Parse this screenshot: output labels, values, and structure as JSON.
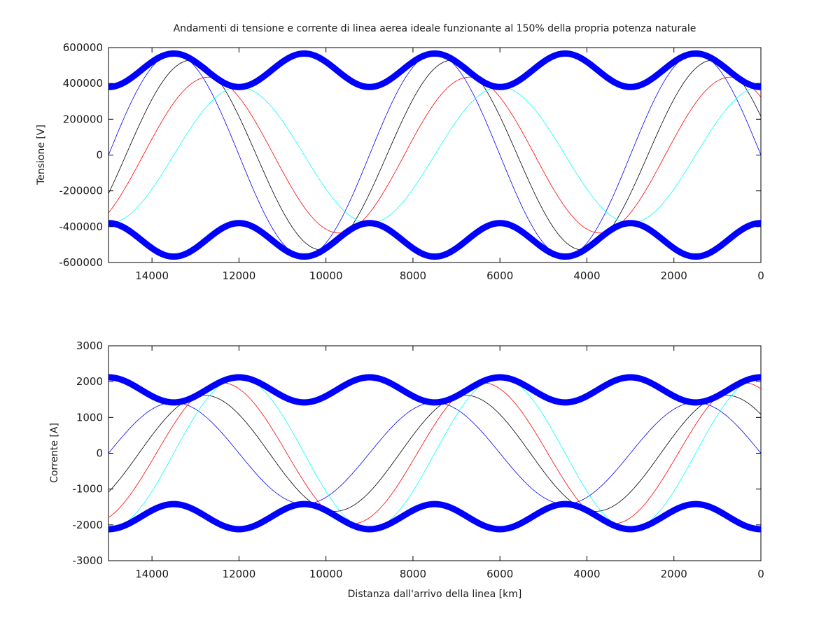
{
  "title": "Andamenti di tensione e corrente di linea aerea ideale funzionante al 150% della propria potenza naturale",
  "colors": {
    "envelope": "#0000ff",
    "series": [
      "#0000ff",
      "#000000",
      "#ff0000",
      "#00ffff"
    ]
  },
  "chart_data": [
    {
      "type": "line",
      "ylabel": "Tensione [V]",
      "xlabel": "",
      "xlim": [
        15000,
        0
      ],
      "ylim": [
        -600000,
        600000
      ],
      "x_ticks": [
        14000,
        12000,
        10000,
        8000,
        6000,
        4000,
        2000,
        0
      ],
      "y_ticks": [
        600000,
        400000,
        200000,
        0,
        -200000,
        -400000,
        -600000
      ],
      "grid": false,
      "wavelength_km": 6000,
      "envelope": {
        "upper_max": 567000,
        "upper_min": 380000,
        "upper_max_at_km": [
          13500,
          10500,
          7500,
          4500,
          1500
        ],
        "upper_min_at_km": [
          15000,
          12000,
          9000,
          6000,
          3000,
          0
        ]
      },
      "series": [
        {
          "color": "#0000ff",
          "value_at_0km": 0,
          "peak": 567000,
          "peak_at_km": [
            13500,
            7500,
            1500
          ]
        },
        {
          "color": "#000000",
          "value_at_0km": 200000,
          "peak": 530000,
          "peak_at_km": [
            13100,
            7100,
            1100
          ]
        },
        {
          "color": "#ff0000",
          "value_at_0km": 340000,
          "peak": 435000,
          "peak_at_km": [
            12700,
            6700,
            700
          ]
        },
        {
          "color": "#00ffff",
          "value_at_0km": 380000,
          "peak": 380000,
          "peak_at_km": [
            12000,
            6000,
            0
          ]
        }
      ]
    },
    {
      "type": "line",
      "ylabel": "Corrente [A]",
      "xlabel": "Distanza dall'arrivo della linea [km]",
      "xlim": [
        15000,
        0
      ],
      "ylim": [
        -3000,
        3000
      ],
      "x_ticks": [
        14000,
        12000,
        10000,
        8000,
        6000,
        4000,
        2000,
        0
      ],
      "y_ticks": [
        3000,
        2000,
        1000,
        0,
        -1000,
        -2000,
        -3000
      ],
      "grid": false,
      "wavelength_km": 6000,
      "envelope": {
        "upper_max": 2120,
        "upper_min": 1420,
        "upper_max_at_km": [
          15000,
          12000,
          9000,
          6000,
          3000,
          0
        ],
        "upper_min_at_km": [
          13500,
          10500,
          7500,
          4500,
          1500
        ]
      },
      "series": [
        {
          "color": "#0000ff",
          "value_at_0km": 0,
          "peak": 1420,
          "peak_at_km": [
            13500,
            7500,
            1500
          ]
        },
        {
          "color": "#000000",
          "value_at_0km": 1100,
          "peak": 1620,
          "peak_at_km": [
            12800,
            6800,
            800
          ]
        },
        {
          "color": "#ff0000",
          "value_at_0km": 1850,
          "peak": 1970,
          "peak_at_km": [
            12400,
            6400,
            400
          ]
        },
        {
          "color": "#00ffff",
          "value_at_0km": 2120,
          "peak": 2120,
          "peak_at_km": [
            12000,
            6000,
            0
          ]
        }
      ]
    }
  ]
}
